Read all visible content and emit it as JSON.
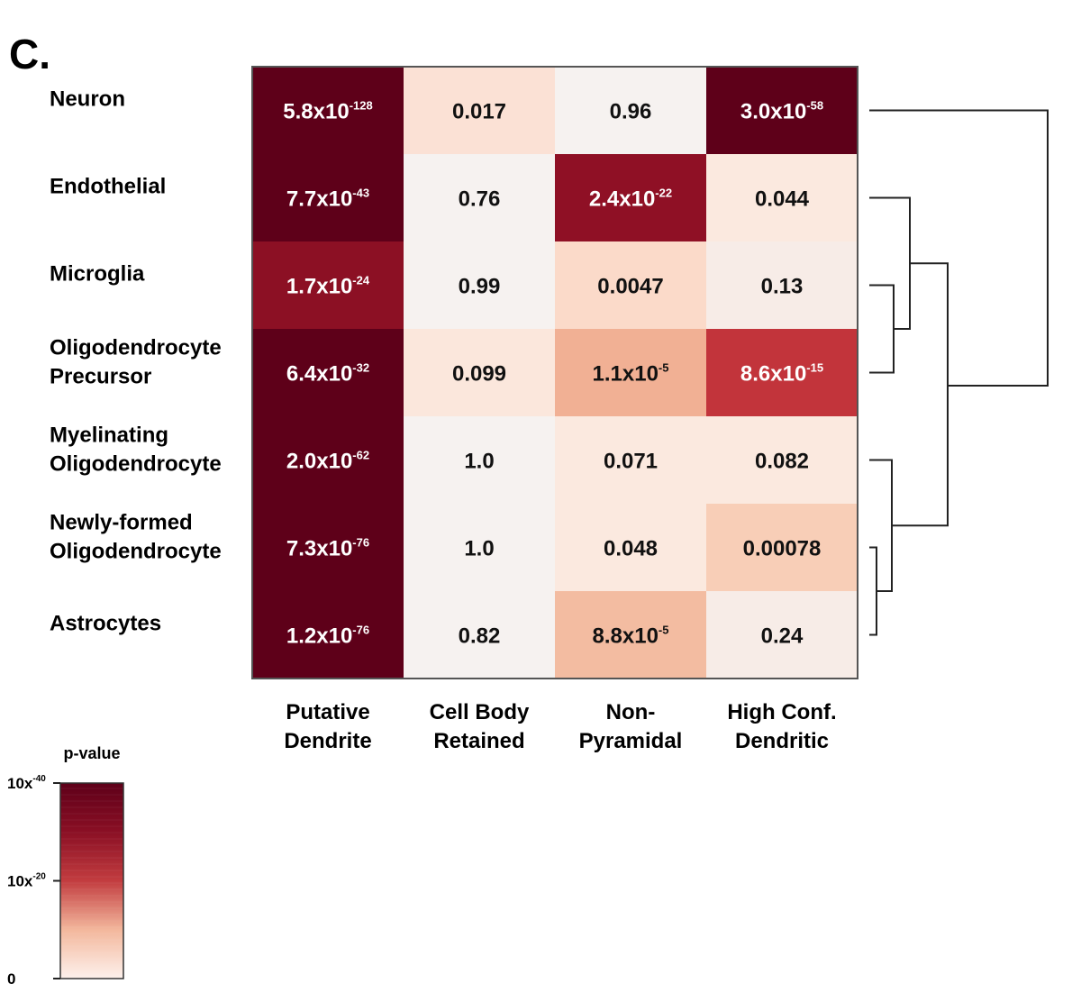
{
  "panel_label": "C.",
  "chart_data": {
    "type": "heatmap",
    "rows": [
      [
        "Neuron"
      ],
      [
        "Endothelial"
      ],
      [
        "Microglia"
      ],
      [
        "Oligodendrocyte",
        "Precursor"
      ],
      [
        "Myelinating",
        "Oligodendrocyte"
      ],
      [
        "Newly-formed",
        "Oligodendrocyte"
      ],
      [
        "Astrocytes"
      ]
    ],
    "columns": [
      [
        "Putative",
        "Dendrite"
      ],
      [
        "Cell Body",
        "Retained"
      ],
      [
        "Non-",
        "Pyramidal"
      ],
      [
        "High Conf.",
        "Dendritic"
      ]
    ],
    "values": [
      [
        {
          "mantissa": "5.8x10",
          "exponent": "-128"
        },
        {
          "text": "0.017"
        },
        {
          "text": "0.96"
        },
        {
          "mantissa": "3.0x10",
          "exponent": "-58"
        }
      ],
      [
        {
          "mantissa": "7.7x10",
          "exponent": "-43"
        },
        {
          "text": "0.76"
        },
        {
          "mantissa": "2.4x10",
          "exponent": "-22"
        },
        {
          "text": "0.044"
        }
      ],
      [
        {
          "mantissa": "1.7x10",
          "exponent": "-24"
        },
        {
          "text": "0.99"
        },
        {
          "text": "0.0047"
        },
        {
          "text": "0.13"
        }
      ],
      [
        {
          "mantissa": "6.4x10",
          "exponent": "-32"
        },
        {
          "text": "0.099"
        },
        {
          "mantissa": "1.1x10",
          "exponent": "-5"
        },
        {
          "mantissa": "8.6x10",
          "exponent": "-15"
        }
      ],
      [
        {
          "mantissa": "2.0x10",
          "exponent": "-62"
        },
        {
          "text": "1.0"
        },
        {
          "text": "0.071"
        },
        {
          "text": "0.082"
        }
      ],
      [
        {
          "mantissa": "7.3x10",
          "exponent": "-76"
        },
        {
          "text": "1.0"
        },
        {
          "text": "0.048"
        },
        {
          "text": "0.00078"
        }
      ],
      [
        {
          "mantissa": "1.2x10",
          "exponent": "-76"
        },
        {
          "text": "0.82"
        },
        {
          "mantissa": "8.8x10",
          "exponent": "-5"
        },
        {
          "text": "0.24"
        }
      ]
    ],
    "cell_colors": [
      [
        "#5e0019",
        "#fbe1d5",
        "#f6f2f0",
        "#5e0019"
      ],
      [
        "#5e0019",
        "#f6f2f0",
        "#8f1025",
        "#fbe9df"
      ],
      [
        "#8c1024",
        "#f6f2f0",
        "#fbdac9",
        "#f7ece7"
      ],
      [
        "#5e0019",
        "#fbe7dc",
        "#f1b094",
        "#c2343b"
      ],
      [
        "#5e0019",
        "#f6f2f0",
        "#fbe9df",
        "#fbe9df"
      ],
      [
        "#5e0019",
        "#f6f2f0",
        "#fbe9df",
        "#f8ceb7"
      ],
      [
        "#5e0019",
        "#f6f2f0",
        "#f3bca1",
        "#f7ece7"
      ]
    ],
    "dark_text_threshold": "light cells use dark text; dark cells use white text",
    "dendrogram": "rows clustered: Neuron joins last; Endothelial+(Microglia+Oligodendrocyte Precursor); (Myelinating)+(Newly-formed+Astrocytes)",
    "legend": {
      "title": "p-value",
      "ticks": [
        {
          "mantissa": "10x",
          "exponent": "-40",
          "level": 1.0
        },
        {
          "mantissa": "10x",
          "exponent": "-20",
          "level": 0.5
        },
        {
          "mantissa": "0",
          "exponent": "",
          "level": 0.0
        }
      ],
      "colors": [
        "#5e0019",
        "#8a0f24",
        "#c23c3f",
        "#f3b79c",
        "#fdf1ec"
      ]
    }
  }
}
